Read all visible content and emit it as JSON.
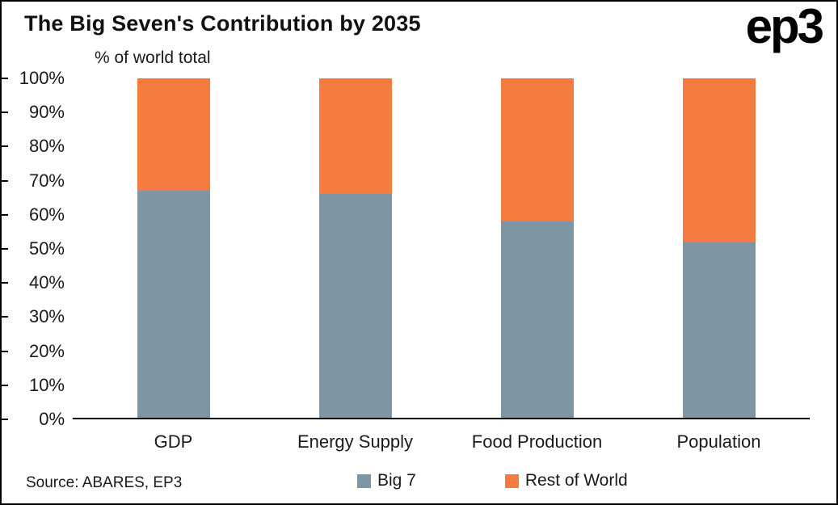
{
  "header": {
    "title": "The Big Seven's Contribution by 2035",
    "logo": "ep3"
  },
  "subtitle": "% of world total",
  "footer": {
    "source": "Source: ABARES, EP3"
  },
  "chart_data": {
    "type": "bar",
    "stacked": true,
    "title": "The Big Seven's Contribution by 2035",
    "ylabel": "% of world total",
    "categories": [
      "GDP",
      "Energy Supply",
      "Food Production",
      "Population"
    ],
    "series": [
      {
        "name": "Big 7",
        "color": "#7E96A4",
        "values": [
          67,
          66,
          58,
          52
        ]
      },
      {
        "name": "Rest of World",
        "color": "#F57C41",
        "values": [
          33,
          34,
          42,
          48
        ]
      }
    ],
    "ylim": [
      0,
      100
    ],
    "ytick_step": 10,
    "ytick_format": "percent",
    "grid": false,
    "legend_position": "bottom"
  }
}
